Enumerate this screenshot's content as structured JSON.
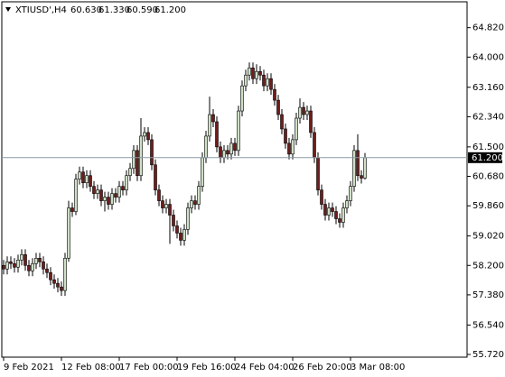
{
  "chart_data": {
    "type": "candlestick",
    "symbol": "XTIUSD',H4",
    "header_values": [
      60.63,
      61.33,
      60.59,
      61.2
    ],
    "header_value_labels": [
      "60.630",
      "61.330",
      "60.590",
      "61.200"
    ],
    "current_price": {
      "value": 61.2,
      "label": "61.200"
    },
    "up_color": "#cfe0c6",
    "down_color": "#6e1c1c",
    "outline_color": "#000000",
    "price_line_color": "#8a9aa6",
    "ylim": [
      55.645,
      65.54
    ],
    "yticks": [
      {
        "value": 64.82,
        "label": "64.820"
      },
      {
        "value": 64.0,
        "label": "64.000"
      },
      {
        "value": 63.16,
        "label": "63.160"
      },
      {
        "value": 62.34,
        "label": "62.340"
      },
      {
        "value": 61.5,
        "label": "61.500"
      },
      {
        "value": 60.68,
        "label": "60.680"
      },
      {
        "value": 59.86,
        "label": "59.860"
      },
      {
        "value": 59.02,
        "label": "59.020"
      },
      {
        "value": 58.2,
        "label": "58.200"
      },
      {
        "value": 57.38,
        "label": "57.380"
      },
      {
        "value": 56.54,
        "label": "56.540"
      },
      {
        "value": 55.72,
        "label": "55.720"
      }
    ],
    "categories": [
      "9 Feb 2021",
      null,
      null,
      null,
      null,
      null,
      null,
      null,
      null,
      null,
      null,
      null,
      null,
      null,
      null,
      null,
      "12 Feb 08:00",
      null,
      null,
      null,
      null,
      null,
      null,
      null,
      null,
      null,
      null,
      null,
      null,
      null,
      null,
      null,
      "17 Feb 00:00",
      null,
      null,
      null,
      null,
      null,
      null,
      null,
      null,
      null,
      null,
      null,
      null,
      null,
      null,
      null,
      "19 Feb 16:00",
      null,
      null,
      null,
      null,
      null,
      null,
      null,
      null,
      null,
      null,
      null,
      null,
      null,
      null,
      null,
      "24 Feb 04:00",
      null,
      null,
      null,
      null,
      null,
      null,
      null,
      null,
      null,
      null,
      null,
      null,
      null,
      null,
      null,
      "26 Feb 20:00",
      null,
      null,
      null,
      null,
      null,
      null,
      null,
      null,
      null,
      null,
      null,
      null,
      null,
      null,
      null,
      "3 Mar 08:00",
      null,
      null,
      null,
      null
    ],
    "open": [
      58.2,
      58.1,
      58.3,
      58.25,
      58.15,
      58.35,
      58.5,
      58.2,
      58.05,
      58.25,
      58.4,
      58.3,
      58.1,
      58.0,
      57.8,
      57.7,
      57.6,
      57.5,
      58.4,
      59.8,
      59.7,
      60.6,
      60.8,
      60.5,
      60.7,
      60.4,
      60.2,
      60.3,
      60.0,
      60.1,
      59.9,
      60.2,
      60.1,
      60.4,
      60.3,
      60.7,
      60.9,
      61.4,
      60.7,
      61.8,
      61.9,
      61.7,
      61.0,
      60.3,
      60.0,
      59.8,
      59.9,
      59.6,
      59.3,
      59.1,
      58.9,
      59.2,
      59.8,
      60.0,
      59.9,
      60.4,
      61.2,
      61.8,
      62.4,
      62.2,
      61.5,
      61.2,
      61.4,
      61.3,
      61.6,
      61.4,
      62.5,
      63.2,
      63.5,
      63.7,
      63.4,
      63.6,
      63.5,
      63.2,
      63.4,
      63.1,
      62.8,
      62.4,
      62.0,
      61.6,
      61.3,
      61.7,
      62.3,
      62.6,
      62.4,
      62.5,
      61.9,
      61.2,
      60.3,
      59.9,
      59.6,
      59.8,
      59.7,
      59.5,
      59.4,
      59.8,
      60.0,
      60.4,
      61.4,
      60.7,
      60.63
    ],
    "high": [
      58.35,
      58.45,
      58.45,
      58.4,
      58.5,
      58.65,
      58.65,
      58.35,
      58.4,
      58.55,
      58.55,
      58.45,
      58.25,
      58.15,
      57.95,
      57.85,
      57.75,
      58.55,
      60.0,
      59.95,
      60.75,
      60.95,
      60.95,
      60.85,
      60.85,
      60.55,
      60.45,
      60.45,
      60.25,
      60.25,
      60.35,
      60.35,
      60.55,
      60.55,
      60.85,
      61.05,
      61.55,
      61.55,
      62.3,
      62.05,
      62.05,
      61.85,
      61.15,
      60.45,
      60.15,
      60.05,
      60.05,
      59.75,
      59.45,
      59.25,
      59.35,
      59.95,
      60.15,
      60.15,
      60.55,
      61.35,
      61.95,
      62.9,
      62.55,
      62.35,
      61.65,
      61.55,
      61.55,
      61.75,
      61.75,
      62.65,
      63.35,
      63.65,
      63.85,
      63.85,
      63.8,
      63.75,
      63.65,
      63.55,
      63.55,
      63.25,
      62.95,
      62.55,
      62.15,
      61.75,
      61.85,
      62.45,
      62.85,
      62.75,
      62.65,
      62.65,
      62.05,
      61.35,
      60.45,
      60.05,
      59.95,
      59.95,
      59.85,
      59.65,
      59.95,
      60.15,
      60.55,
      61.55,
      61.85,
      60.85,
      61.33
    ],
    "low": [
      57.95,
      57.95,
      58.1,
      58.0,
      58.0,
      58.2,
      58.05,
      57.9,
      57.9,
      58.1,
      58.15,
      57.95,
      57.85,
      57.65,
      57.55,
      57.45,
      57.35,
      57.35,
      58.3,
      59.55,
      59.6,
      60.45,
      60.35,
      60.35,
      60.25,
      60.05,
      60.05,
      59.85,
      59.7,
      59.75,
      59.75,
      59.95,
      59.95,
      60.15,
      60.15,
      60.55,
      60.75,
      60.55,
      60.55,
      61.65,
      61.55,
      60.85,
      60.15,
      59.85,
      59.65,
      59.65,
      58.8,
      59.15,
      58.95,
      58.75,
      58.75,
      59.05,
      59.65,
      59.75,
      59.75,
      60.25,
      61.05,
      61.65,
      62.05,
      61.35,
      61.05,
      61.05,
      61.15,
      61.15,
      61.25,
      61.25,
      62.35,
      63.05,
      63.35,
      63.25,
      63.25,
      63.35,
      63.05,
      63.05,
      62.95,
      62.65,
      62.25,
      61.85,
      61.45,
      61.15,
      61.15,
      61.55,
      62.15,
      62.25,
      62.25,
      61.75,
      61.05,
      60.15,
      59.75,
      59.45,
      59.45,
      59.55,
      59.35,
      59.25,
      59.25,
      59.65,
      59.85,
      60.25,
      60.55,
      60.48,
      60.59
    ],
    "close": [
      58.1,
      58.3,
      58.25,
      58.15,
      58.35,
      58.5,
      58.2,
      58.05,
      58.25,
      58.4,
      58.3,
      58.1,
      58.0,
      57.8,
      57.7,
      57.6,
      57.5,
      58.4,
      59.8,
      59.7,
      60.6,
      60.8,
      60.5,
      60.7,
      60.4,
      60.2,
      60.3,
      60.0,
      60.1,
      59.9,
      60.2,
      60.1,
      60.4,
      60.3,
      60.7,
      60.9,
      61.4,
      60.7,
      61.8,
      61.9,
      61.7,
      61.0,
      60.3,
      60.0,
      59.8,
      59.9,
      59.6,
      59.3,
      59.1,
      58.9,
      59.2,
      59.8,
      60.0,
      59.9,
      60.4,
      61.2,
      61.8,
      62.4,
      62.2,
      61.5,
      61.2,
      61.4,
      61.3,
      61.6,
      61.4,
      62.5,
      63.2,
      63.5,
      63.7,
      63.4,
      63.6,
      63.5,
      63.2,
      63.4,
      63.1,
      62.8,
      62.4,
      62.0,
      61.6,
      61.3,
      61.7,
      62.3,
      62.6,
      62.4,
      62.5,
      61.9,
      61.2,
      60.3,
      59.9,
      59.6,
      59.8,
      59.7,
      59.5,
      59.4,
      59.8,
      60.0,
      60.4,
      61.4,
      60.7,
      60.63,
      61.2
    ]
  }
}
